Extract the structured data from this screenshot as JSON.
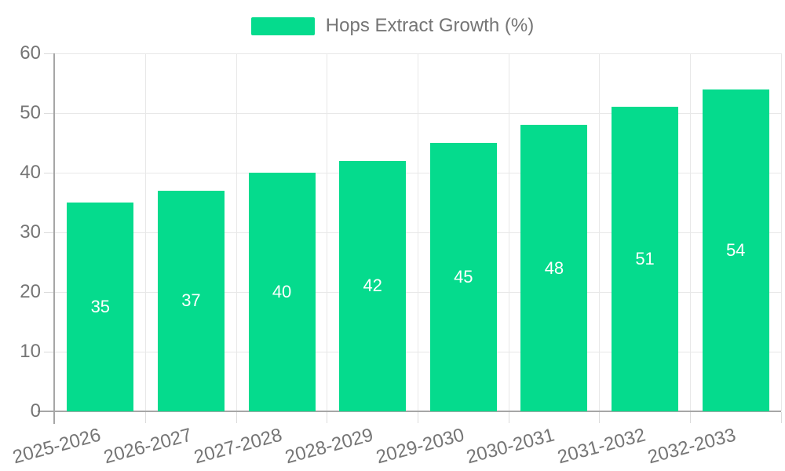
{
  "legend": {
    "label": "Hops Extract Growth (%)",
    "swatch_color": "#05db8d"
  },
  "chart_data": {
    "type": "bar",
    "title": "",
    "xlabel": "",
    "ylabel": "",
    "series_name": "Hops Extract Growth (%)",
    "categories": [
      "2025-2026",
      "2026-2027",
      "2027-2028",
      "2028-2029",
      "2029-2030",
      "2030-2031",
      "2031-2032",
      "2032-2033"
    ],
    "values": [
      35,
      37,
      40,
      42,
      45,
      48,
      51,
      54
    ],
    "value_labels": [
      "35",
      "37",
      "40",
      "42",
      "45",
      "48",
      "51",
      "54"
    ],
    "y_tick_labels": [
      "0",
      "10",
      "20",
      "30",
      "40",
      "50",
      "60"
    ],
    "ylim": [
      0,
      60
    ],
    "grid": true,
    "legend_position": "top-center",
    "x_label_rotation_deg": -15,
    "colors": {
      "bar": "#05db8d",
      "value_label": "#ffffff",
      "axis_text": "#757575",
      "axis_line": "#a6a6a6",
      "grid_line": "#e8e8e8",
      "tick_line": "#dcdcdc",
      "background": "#ffffff"
    }
  }
}
